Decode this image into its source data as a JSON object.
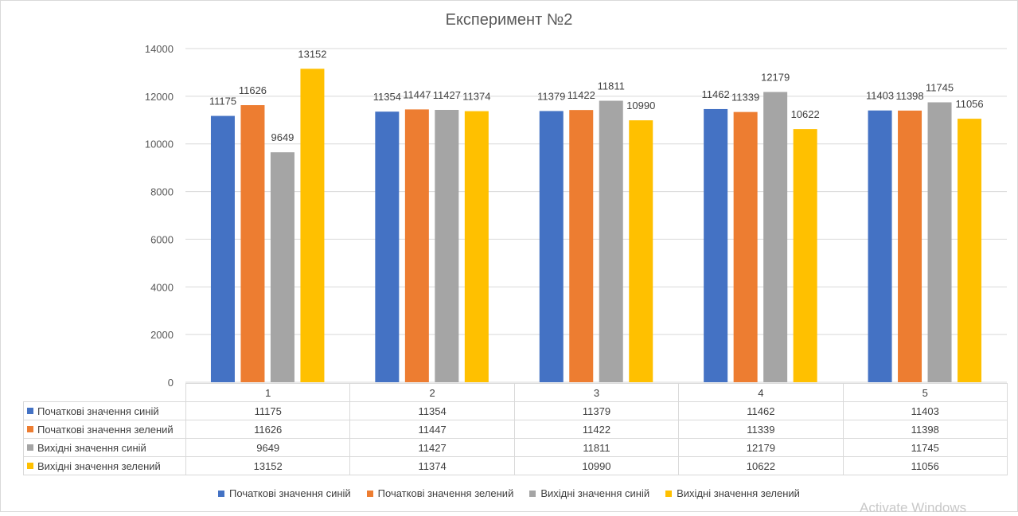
{
  "chart_data": {
    "type": "bar",
    "title": "Експеримент №2",
    "categories": [
      "1",
      "2",
      "3",
      "4",
      "5"
    ],
    "series": [
      {
        "name": "Початкові значення синій",
        "color": "#4472c4",
        "values": [
          11175,
          11354,
          11379,
          11462,
          11403
        ]
      },
      {
        "name": "Початкові значення зелений",
        "color": "#ed7d31",
        "values": [
          11626,
          11447,
          11422,
          11339,
          11398
        ]
      },
      {
        "name": "Вихідні значення синій",
        "color": "#a5a5a5",
        "values": [
          9649,
          11427,
          11811,
          12179,
          11745
        ]
      },
      {
        "name": "Вихідні значення зелений",
        "color": "#ffc000",
        "values": [
          13152,
          11374,
          10990,
          10622,
          11056
        ]
      }
    ],
    "ylim": [
      0,
      14000
    ],
    "yticks": [
      0,
      2000,
      4000,
      6000,
      8000,
      10000,
      12000,
      14000
    ],
    "grid": true,
    "data_labels": true,
    "legend": "bottom",
    "data_table": true
  },
  "watermark": "Activate Windows"
}
